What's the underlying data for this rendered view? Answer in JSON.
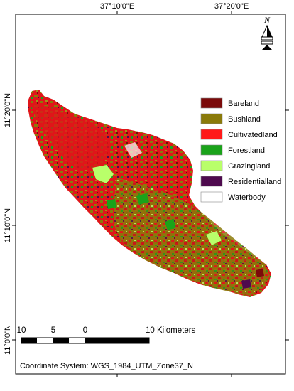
{
  "map": {
    "top_coordinates": [
      "37°10'0\"E",
      "37°20'0\"E"
    ],
    "left_coordinates": [
      "11°20'0\"N",
      "11°10'0\"N",
      "11°0'0\"N"
    ],
    "north_arrow_label": "N",
    "coordinate_system": "Coordinate System: WGS_1984_UTM_Zone37_N"
  },
  "legend": {
    "items": [
      {
        "label": "Bareland",
        "color": "#7b0a0a",
        "icon": "swatch"
      },
      {
        "label": "Bushland",
        "color": "#8a7a0a",
        "icon": "swatch"
      },
      {
        "label": "Cultivatedland",
        "color": "#ff1a1a",
        "icon": "swatch"
      },
      {
        "label": "Forestland",
        "color": "#1aa31a",
        "icon": "swatch"
      },
      {
        "label": "Grazingland",
        "color": "#b9ff6a",
        "icon": "swatch"
      },
      {
        "label": "Residentialland",
        "color": "#4e0a4e",
        "icon": "swatch"
      },
      {
        "label": "Waterbody",
        "color": "#ffffff",
        "icon": "swatch"
      }
    ]
  },
  "scale_bar": {
    "ticks": [
      "10",
      "5",
      "0",
      "10 Kilometers"
    ]
  }
}
